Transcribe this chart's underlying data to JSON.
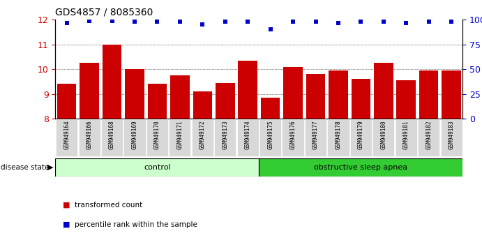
{
  "title": "GDS4857 / 8085360",
  "samples": [
    "GSM949164",
    "GSM949166",
    "GSM949168",
    "GSM949169",
    "GSM949170",
    "GSM949171",
    "GSM949172",
    "GSM949173",
    "GSM949174",
    "GSM949175",
    "GSM949176",
    "GSM949177",
    "GSM949178",
    "GSM949179",
    "GSM949180",
    "GSM949181",
    "GSM949182",
    "GSM949183"
  ],
  "transformed_counts": [
    9.4,
    10.25,
    11.0,
    10.0,
    9.4,
    9.75,
    9.1,
    9.45,
    10.35,
    8.85,
    10.1,
    9.8,
    9.95,
    9.6,
    10.25,
    9.55,
    9.95,
    9.95
  ],
  "percentile_values": [
    97,
    99,
    99,
    98,
    98,
    98,
    95,
    98,
    98,
    90,
    98,
    98,
    97,
    98,
    98,
    97,
    98,
    98
  ],
  "control_count": 9,
  "disease_count": 9,
  "bar_color": "#cc0000",
  "dot_color": "#0000cc",
  "control_color": "#ccffcc",
  "apnea_color": "#33cc33",
  "label_bg_color": "#d8d8d8",
  "ylim_left": [
    8,
    12
  ],
  "yticks_left": [
    8,
    9,
    10,
    11,
    12
  ],
  "yticks_right": [
    0,
    25,
    50,
    75,
    100
  ],
  "background_color": "#ffffff",
  "title_fontsize": 10,
  "bar_width": 0.85
}
